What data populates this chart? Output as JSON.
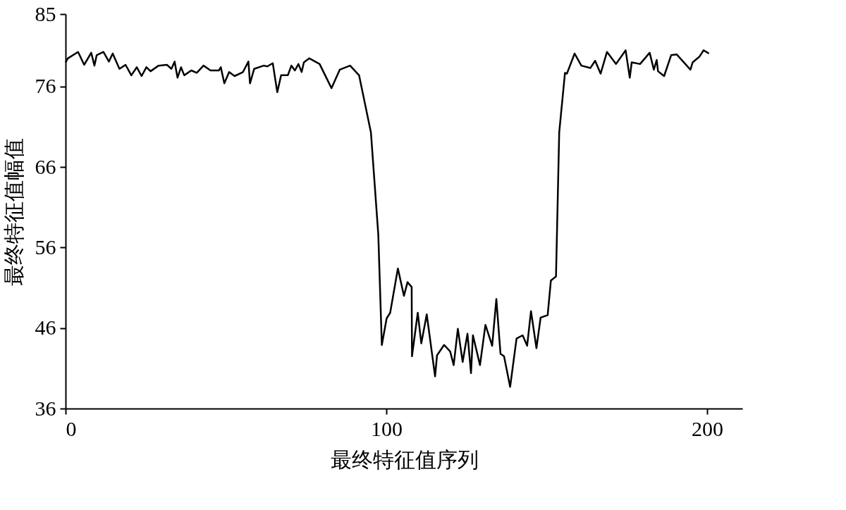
{
  "chart_data": {
    "type": "line",
    "xlabel": "最终特征值序列",
    "ylabel": "最终特征值幅值",
    "x": [
      0,
      0.7,
      3.9,
      5.8,
      8,
      9,
      9.7,
      11.8,
      13.5,
      14.7,
      16.8,
      18.7,
      20.5,
      22.2,
      23.7,
      25.2,
      26.5,
      29,
      31.6,
      33,
      34,
      34.9,
      36,
      37,
      39.2,
      40.9,
      43,
      45.2,
      47.8,
      48.4,
      49.5,
      51,
      52.7,
      55.3,
      57,
      57.5,
      58.8,
      61.8,
      62.9,
      64.6,
      66,
      67.2,
      69.3,
      70.4,
      71.5,
      72.6,
      73.6,
      74.3,
      76,
      79.2,
      82.9,
      85.5,
      88.7,
      91.5,
      95.2,
      97.5,
      98.6,
      100.1,
      101.2,
      103.6,
      105.5,
      106.6,
      107.9,
      108,
      109.8,
      110.9,
      112.6,
      115.2,
      115.8,
      118,
      119.9,
      121,
      122.3,
      123.8,
      125.3,
      126.4,
      127,
      129.2,
      130.9,
      133,
      134.3,
      135.6,
      136.7,
      138.6,
      140.6,
      142.5,
      143.9,
      145.1,
      146.8,
      148.1,
      150.3,
      151.3,
      152.9,
      153.9,
      155.7,
      156.3,
      158.7,
      160.8,
      163.6,
      165.1,
      166.8,
      168.8,
      171.6,
      174.6,
      175.9,
      176.5,
      179.1,
      182.1,
      183.4,
      184.3,
      184.7,
      186.6,
      188.8,
      190.5,
      194.8,
      195.5,
      197.6,
      198.9,
      200.6
    ],
    "series": [
      {
        "color": "#000000",
        "values": [
          79.0,
          79.5,
          80.3,
          78.7,
          80.2,
          78.6,
          79.9,
          80.3,
          79.1,
          80.1,
          78.2,
          78.7,
          77.4,
          78.4,
          77.3,
          78.4,
          77.9,
          78.6,
          78.7,
          78.2,
          79.1,
          77.1,
          78.4,
          77.4,
          78.0,
          77.7,
          78.6,
          78.0,
          78.0,
          78.4,
          76.4,
          77.8,
          77.3,
          77.8,
          79.1,
          76.4,
          78.2,
          78.6,
          78.5,
          78.9,
          75.3,
          77.4,
          77.4,
          78.6,
          78.0,
          78.8,
          77.8,
          79.0,
          79.5,
          78.8,
          75.8,
          78.1,
          78.6,
          77.4,
          70.3,
          57.6,
          43.9,
          47.2,
          47.9,
          53.4,
          50.0,
          51.7,
          51.1,
          42.5,
          47.9,
          44.1,
          47.7,
          40.0,
          42.6,
          43.9,
          43.1,
          41.4,
          45.9,
          41.8,
          45.3,
          40.4,
          45.1,
          41.4,
          46.4,
          43.8,
          49.6,
          42.8,
          42.5,
          38.7,
          44.7,
          45.1,
          43.8,
          48.1,
          43.5,
          47.3,
          47.6,
          51.9,
          52.4,
          70.3,
          77.7,
          77.6,
          80.1,
          78.6,
          78.3,
          79.2,
          77.6,
          80.3,
          78.8,
          80.5,
          77.1,
          79.0,
          78.8,
          80.2,
          78.1,
          79.3,
          77.9,
          77.3,
          79.9,
          80.0,
          78.1,
          79.0,
          79.7,
          80.5,
          80.1
        ]
      }
    ],
    "xlim": [
      0,
      211
    ],
    "xticks": [
      0,
      100,
      200
    ],
    "ylim": [
      36,
      85
    ],
    "yticks": [
      36,
      46,
      56,
      66,
      76,
      85
    ],
    "grid": false,
    "marker": "none",
    "line_style": "solid"
  }
}
